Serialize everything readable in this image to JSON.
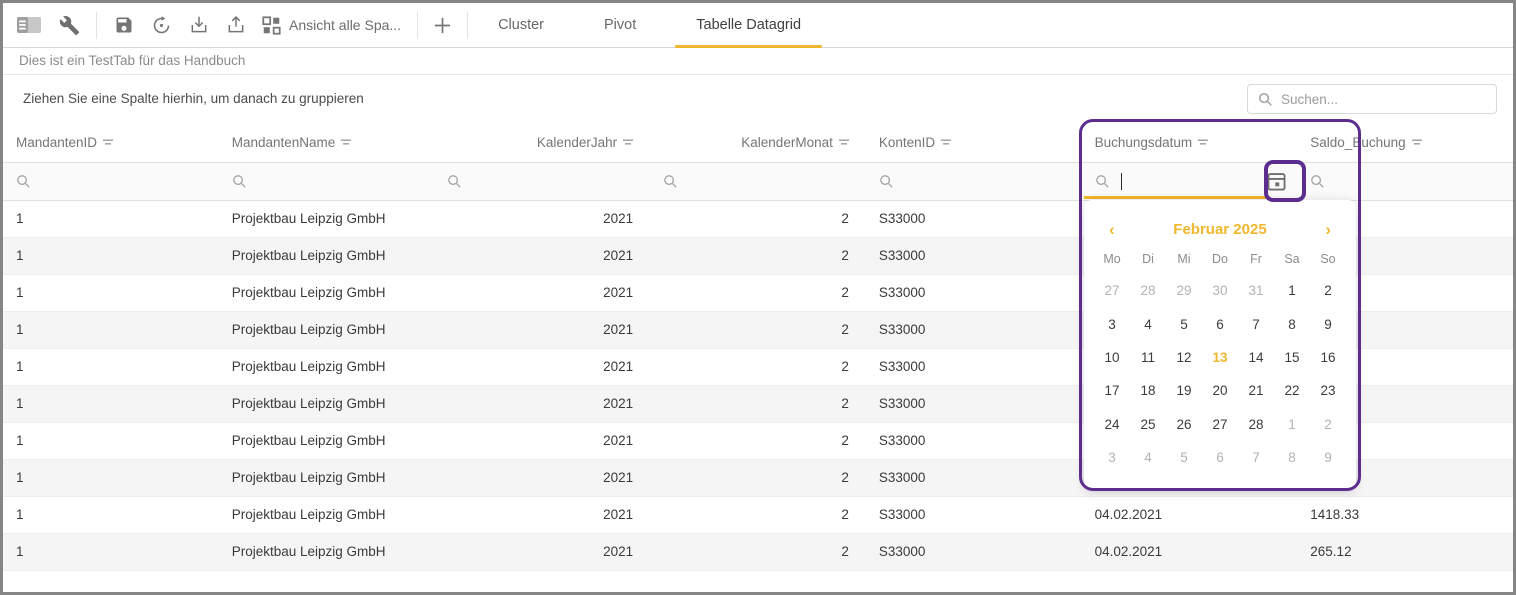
{
  "toolbar": {
    "icons": [
      "panel-icon",
      "wrench-icon",
      "save-icon",
      "restore-icon",
      "download-icon",
      "upload-icon",
      "grid-view-icon",
      "plus-icon"
    ],
    "view_button_label": "Ansicht alle Spa..."
  },
  "tabs": [
    {
      "label": "Cluster",
      "active": false
    },
    {
      "label": "Pivot",
      "active": false
    },
    {
      "label": "Tabelle Datagrid",
      "active": true
    }
  ],
  "subtitle": "Dies ist ein TestTab für das Handbuch",
  "group_panel": {
    "hint": "Ziehen Sie eine Spalte hierhin, um danach zu gruppieren",
    "search_placeholder": "Suchen..."
  },
  "table": {
    "columns": [
      {
        "label": "MandantenID",
        "align": "left"
      },
      {
        "label": "MandantenName",
        "align": "left"
      },
      {
        "label": "KalenderJahr",
        "align": "right"
      },
      {
        "label": "KalenderMonat",
        "align": "right"
      },
      {
        "label": "KontenID",
        "align": "left"
      },
      {
        "label": "Buchungsdatum",
        "align": "left"
      },
      {
        "label": "Saldo_Buchung",
        "align": "left"
      }
    ],
    "rows": [
      [
        "1",
        "Projektbau Leipzig GmbH",
        "2021",
        "2",
        "S33000",
        "",
        ""
      ],
      [
        "1",
        "Projektbau Leipzig GmbH",
        "2021",
        "2",
        "S33000",
        "",
        ""
      ],
      [
        "1",
        "Projektbau Leipzig GmbH",
        "2021",
        "2",
        "S33000",
        "",
        ""
      ],
      [
        "1",
        "Projektbau Leipzig GmbH",
        "2021",
        "2",
        "S33000",
        "",
        ""
      ],
      [
        "1",
        "Projektbau Leipzig GmbH",
        "2021",
        "2",
        "S33000",
        "",
        ""
      ],
      [
        "1",
        "Projektbau Leipzig GmbH",
        "2021",
        "2",
        "S33000",
        "",
        ""
      ],
      [
        "1",
        "Projektbau Leipzig GmbH",
        "2021",
        "2",
        "S33000",
        "",
        ""
      ],
      [
        "1",
        "Projektbau Leipzig GmbH",
        "2021",
        "2",
        "S33000",
        "",
        ""
      ],
      [
        "1",
        "Projektbau Leipzig GmbH",
        "2021",
        "2",
        "S33000",
        "04.02.2021",
        "1418.33"
      ],
      [
        "1",
        "Projektbau Leipzig GmbH",
        "2021",
        "2",
        "S33000",
        "04.02.2021",
        "265.12"
      ]
    ]
  },
  "calendar": {
    "month_label": "Februar 2025",
    "prev_label": "‹",
    "next_label": "›",
    "weekdays": [
      "Mo",
      "Di",
      "Mi",
      "Do",
      "Fr",
      "Sa",
      "So"
    ],
    "selected_day": "13",
    "weeks": [
      [
        {
          "d": "27",
          "muted": true
        },
        {
          "d": "28",
          "muted": true
        },
        {
          "d": "29",
          "muted": true
        },
        {
          "d": "30",
          "muted": true
        },
        {
          "d": "31",
          "muted": true
        },
        {
          "d": "1"
        },
        {
          "d": "2"
        }
      ],
      [
        {
          "d": "3"
        },
        {
          "d": "4"
        },
        {
          "d": "5"
        },
        {
          "d": "6"
        },
        {
          "d": "7"
        },
        {
          "d": "8"
        },
        {
          "d": "9"
        }
      ],
      [
        {
          "d": "10"
        },
        {
          "d": "11"
        },
        {
          "d": "12"
        },
        {
          "d": "13",
          "selected": true
        },
        {
          "d": "14"
        },
        {
          "d": "15"
        },
        {
          "d": "16"
        }
      ],
      [
        {
          "d": "17"
        },
        {
          "d": "18"
        },
        {
          "d": "19"
        },
        {
          "d": "20"
        },
        {
          "d": "21"
        },
        {
          "d": "22"
        },
        {
          "d": "23"
        }
      ],
      [
        {
          "d": "24"
        },
        {
          "d": "25"
        },
        {
          "d": "26"
        },
        {
          "d": "27"
        },
        {
          "d": "28"
        },
        {
          "d": "1",
          "muted": true
        },
        {
          "d": "2",
          "muted": true
        }
      ],
      [
        {
          "d": "3",
          "muted": true
        },
        {
          "d": "4",
          "muted": true
        },
        {
          "d": "5",
          "muted": true
        },
        {
          "d": "6",
          "muted": true
        },
        {
          "d": "7",
          "muted": true
        },
        {
          "d": "8",
          "muted": true
        },
        {
          "d": "9",
          "muted": true
        }
      ]
    ]
  },
  "colors": {
    "accent": "#F0B72E",
    "annotation_purple": "#5B2D8E"
  }
}
